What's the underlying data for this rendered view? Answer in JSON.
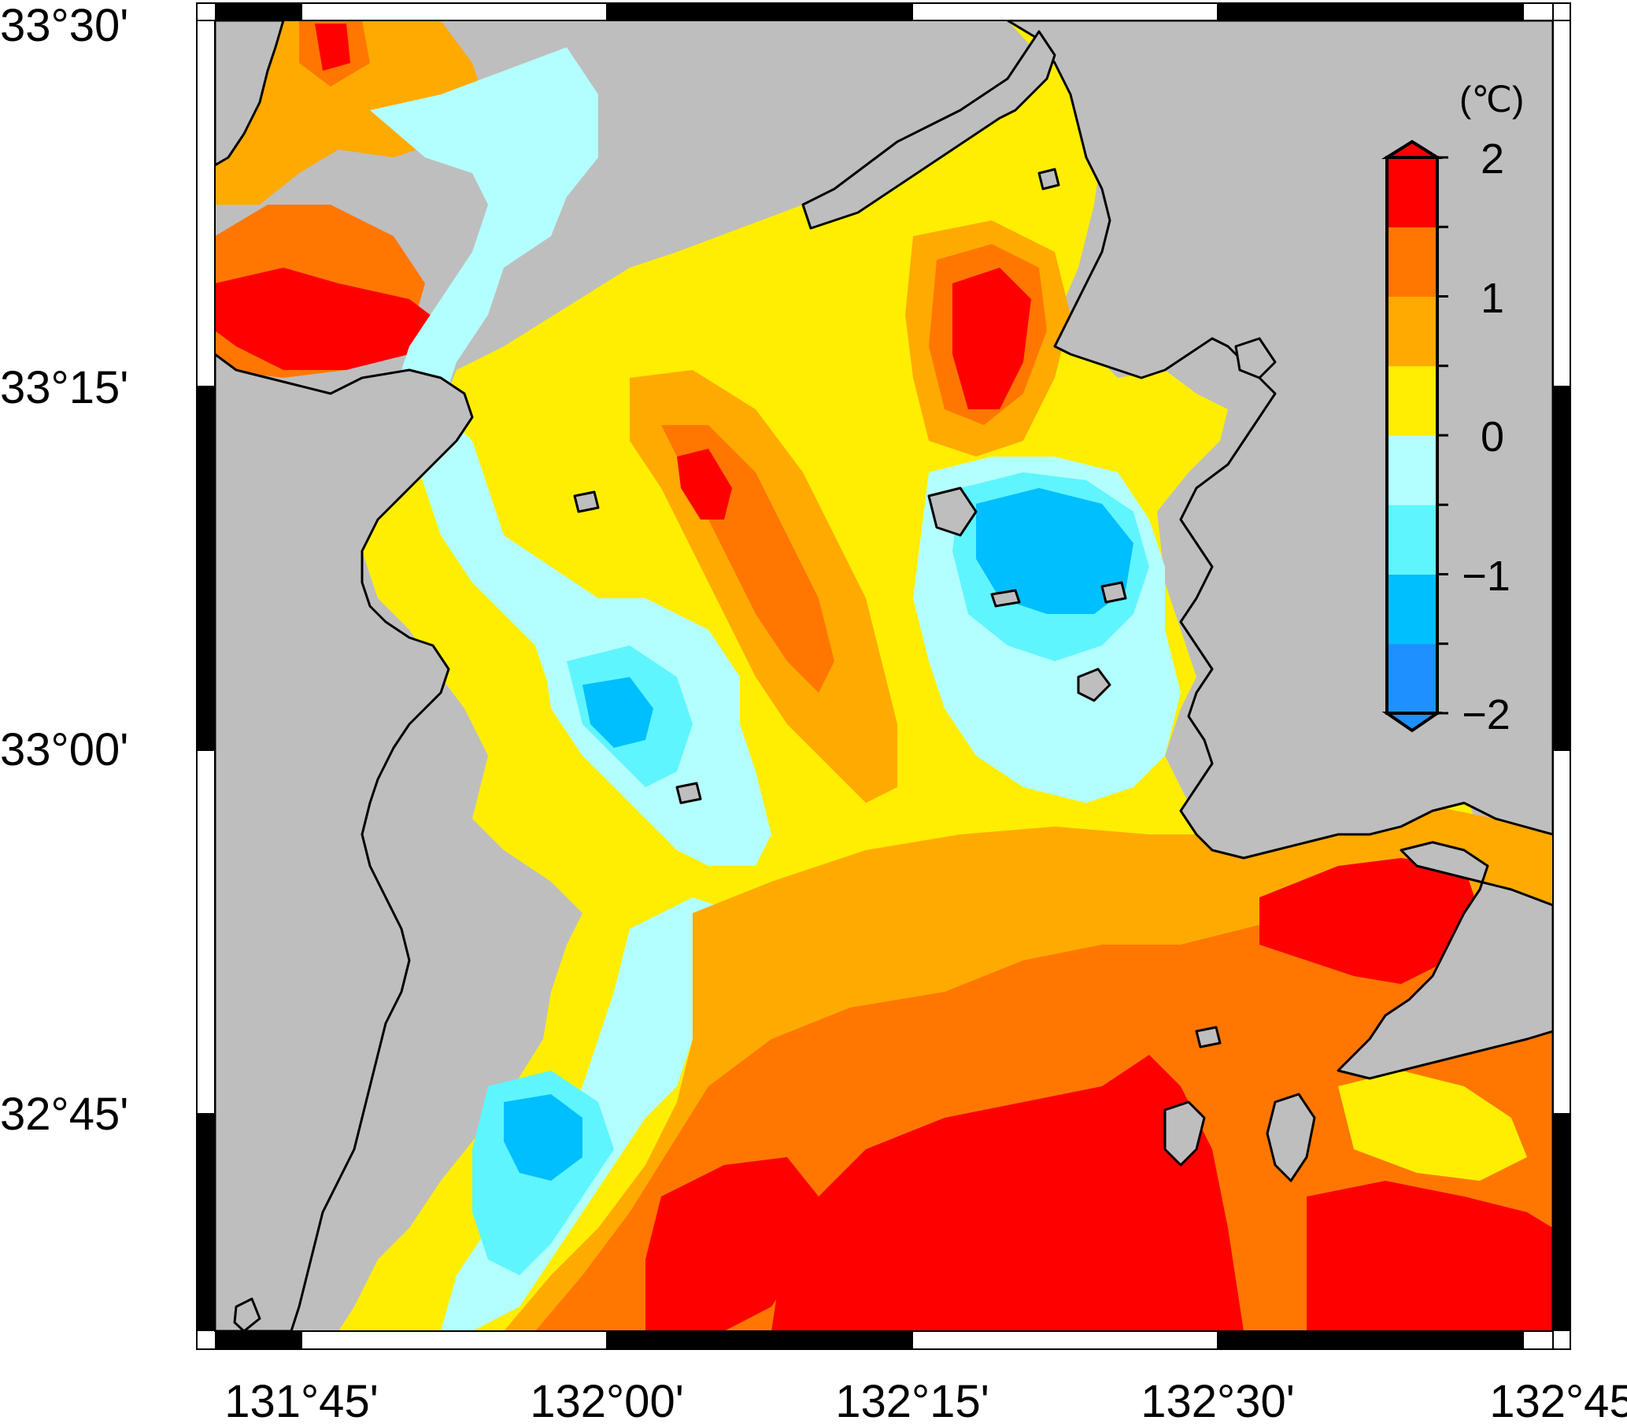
{
  "map": {
    "background_color": "#bebebe",
    "coast_color": "#000000",
    "longitude_labels": [
      "131°45'",
      "132°00'",
      "132°15'",
      "132°30'",
      "132°45'"
    ],
    "latitude_labels": [
      "33°30'",
      "33°15'",
      "33°00'",
      "32°45'"
    ]
  },
  "colorbar": {
    "unit": "(℃)",
    "tick_labels": [
      "2",
      "1",
      "0",
      "−1",
      "−2"
    ],
    "range": [
      -2,
      2
    ],
    "step": 0.5,
    "colors": [
      "#1e90ff",
      "#00bfff",
      "#5ff5ff",
      "#b3ffff",
      "#ffee00",
      "#ffaa00",
      "#ff7700",
      "#ff0000"
    ]
  },
  "legend": {
    "land": "land-icon",
    "coastline": "coastline-icon"
  }
}
